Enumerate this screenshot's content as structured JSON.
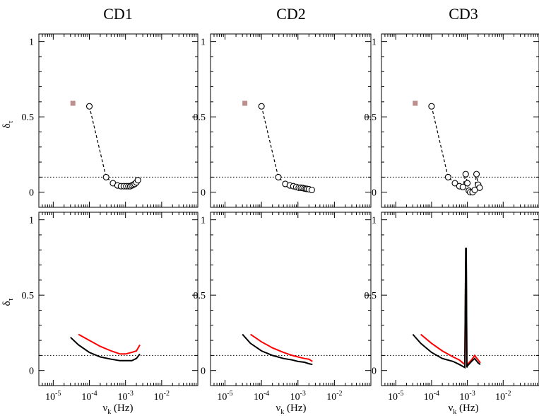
{
  "figure": {
    "titles": [
      "CD1",
      "CD2",
      "CD3"
    ],
    "ylabel_top": "δτ",
    "ylabel_bottom": "δτ",
    "xlabel": "νk (Hz)"
  },
  "chart_data": [
    {
      "type": "scatter",
      "title": "CD1",
      "row": "top",
      "xscale": "log",
      "xlim": [
        4e-06,
        0.1
      ],
      "ylim": [
        -0.1,
        1.05
      ],
      "yticks": [
        0,
        0.5,
        1
      ],
      "ytick_labels": [
        "0",
        "0.5",
        "1"
      ],
      "xticks": [
        1e-05,
        0.0001,
        0.001,
        0.01
      ],
      "xtick_labels": [
        [
          "10",
          "-5"
        ],
        [
          "10",
          "-4"
        ],
        [
          "10",
          "-3"
        ],
        [
          "10",
          "-2"
        ]
      ],
      "reference_line": 0.1,
      "square_marker": {
        "x": 3.5e-05,
        "y": 0.59,
        "color": "#bc8f8f"
      },
      "series": [
        {
          "name": "circles",
          "x": [
            0.0001,
            0.00029,
            0.00045,
            0.0006,
            0.00075,
            0.0009,
            0.00105,
            0.0012,
            0.00135,
            0.0015,
            0.00165,
            0.0018,
            0.002,
            0.0022
          ],
          "y": [
            0.57,
            0.1,
            0.06,
            0.045,
            0.04,
            0.04,
            0.04,
            0.04,
            0.04,
            0.045,
            0.05,
            0.055,
            0.065,
            0.08
          ]
        }
      ]
    },
    {
      "type": "scatter",
      "title": "CD2",
      "row": "top",
      "xscale": "log",
      "xlim": [
        4e-06,
        0.1
      ],
      "ylim": [
        -0.1,
        1.05
      ],
      "yticks": [
        0,
        0.5,
        1
      ],
      "ytick_labels": [
        "0",
        "0.5",
        "1"
      ],
      "xticks": [
        1e-05,
        0.0001,
        0.001,
        0.01
      ],
      "xtick_labels": [
        [
          "10",
          "-5"
        ],
        [
          "10",
          "-4"
        ],
        [
          "10",
          "-3"
        ],
        [
          "10",
          "-2"
        ]
      ],
      "reference_line": 0.1,
      "square_marker": {
        "x": 3.5e-05,
        "y": 0.59,
        "color": "#bc8f8f"
      },
      "series": [
        {
          "name": "circles",
          "x": [
            0.0001,
            0.00029,
            0.00045,
            0.0006,
            0.00075,
            0.0009,
            0.00105,
            0.0012,
            0.00135,
            0.0015,
            0.00165,
            0.0018,
            0.002,
            0.0024
          ],
          "y": [
            0.57,
            0.1,
            0.055,
            0.045,
            0.04,
            0.035,
            0.03,
            0.03,
            0.028,
            0.025,
            0.023,
            0.022,
            0.02,
            0.015
          ]
        }
      ]
    },
    {
      "type": "scatter",
      "title": "CD3",
      "row": "top",
      "xscale": "log",
      "xlim": [
        4e-06,
        0.1
      ],
      "ylim": [
        -0.1,
        1.05
      ],
      "yticks": [
        0,
        0.5,
        1
      ],
      "ytick_labels": [
        "0",
        "0.5",
        "1"
      ],
      "xticks": [
        1e-05,
        0.0001,
        0.001,
        0.01
      ],
      "xtick_labels": [
        [
          "10",
          "-5"
        ],
        [
          "10",
          "-4"
        ],
        [
          "10",
          "-3"
        ],
        [
          "10",
          "-2"
        ]
      ],
      "reference_line": 0.1,
      "square_marker": {
        "x": 3.5e-05,
        "y": 0.59,
        "color": "#bc8f8f"
      },
      "series": [
        {
          "name": "circles",
          "x": [
            0.0001,
            0.00029,
            0.00045,
            0.0006,
            0.00075,
            0.0009,
            0.001,
            0.0011,
            0.0012,
            0.0014,
            0.0016,
            0.0018,
            0.002,
            0.0022
          ],
          "y": [
            0.57,
            0.1,
            0.06,
            0.04,
            0.035,
            0.12,
            0.06,
            0.01,
            0.0,
            0.0,
            0.015,
            0.12,
            0.05,
            0.03
          ]
        }
      ]
    },
    {
      "type": "line",
      "title": "CD1",
      "row": "bottom",
      "xscale": "log",
      "xlim": [
        4e-06,
        0.1
      ],
      "ylim": [
        -0.1,
        1.05
      ],
      "yticks": [
        0,
        0.5,
        1
      ],
      "ytick_labels": [
        "0",
        "0.5",
        "1"
      ],
      "xticks": [
        1e-05,
        0.0001,
        0.001,
        0.01
      ],
      "xtick_labels": [
        [
          "10",
          "-5"
        ],
        [
          "10",
          "-4"
        ],
        [
          "10",
          "-3"
        ],
        [
          "10",
          "-2"
        ]
      ],
      "reference_line": 0.1,
      "series": [
        {
          "name": "black",
          "color": "#000000",
          "x": [
            3e-05,
            5e-05,
            0.0001,
            0.0002,
            0.0004,
            0.0007,
            0.001,
            0.0015,
            0.002,
            0.0025
          ],
          "y": [
            0.22,
            0.17,
            0.12,
            0.09,
            0.075,
            0.065,
            0.065,
            0.065,
            0.08,
            0.11
          ]
        },
        {
          "name": "red",
          "color": "#ff0000",
          "x": [
            5e-05,
            0.0001,
            0.0002,
            0.0004,
            0.0007,
            0.001,
            0.0015,
            0.002,
            0.0025
          ],
          "y": [
            0.24,
            0.2,
            0.16,
            0.13,
            0.11,
            0.11,
            0.12,
            0.13,
            0.17
          ]
        }
      ]
    },
    {
      "type": "line",
      "title": "CD2",
      "row": "bottom",
      "xscale": "log",
      "xlim": [
        4e-06,
        0.1
      ],
      "ylim": [
        -0.1,
        1.05
      ],
      "yticks": [
        0,
        0.5,
        1
      ],
      "ytick_labels": [
        "0",
        "0.5",
        "1"
      ],
      "xticks": [
        1e-05,
        0.0001,
        0.001,
        0.01
      ],
      "xtick_labels": [
        [
          "10",
          "-5"
        ],
        [
          "10",
          "-4"
        ],
        [
          "10",
          "-3"
        ],
        [
          "10",
          "-2"
        ]
      ],
      "reference_line": 0.1,
      "series": [
        {
          "name": "black",
          "color": "#000000",
          "x": [
            3e-05,
            5e-05,
            0.0001,
            0.0002,
            0.0004,
            0.0007,
            0.001,
            0.0015,
            0.002,
            0.0025
          ],
          "y": [
            0.24,
            0.18,
            0.13,
            0.1,
            0.08,
            0.07,
            0.06,
            0.055,
            0.045,
            0.04
          ]
        },
        {
          "name": "red",
          "color": "#ff0000",
          "x": [
            5e-05,
            0.0001,
            0.0002,
            0.0004,
            0.0007,
            0.001,
            0.0015,
            0.002,
            0.0025
          ],
          "y": [
            0.24,
            0.19,
            0.15,
            0.12,
            0.1,
            0.09,
            0.08,
            0.075,
            0.06
          ]
        }
      ]
    },
    {
      "type": "line",
      "title": "CD3",
      "row": "bottom",
      "xscale": "log",
      "xlim": [
        4e-06,
        0.1
      ],
      "ylim": [
        -0.1,
        1.05
      ],
      "yticks": [
        0,
        0.5,
        1
      ],
      "ytick_labels": [
        "0",
        "0.5",
        "1"
      ],
      "xticks": [
        1e-05,
        0.0001,
        0.001,
        0.01
      ],
      "xtick_labels": [
        [
          "10",
          "-5"
        ],
        [
          "10",
          "-4"
        ],
        [
          "10",
          "-3"
        ],
        [
          "10",
          "-2"
        ]
      ],
      "reference_line": 0.1,
      "series": [
        {
          "name": "black",
          "color": "#000000",
          "x": [
            3e-05,
            5e-05,
            0.0001,
            0.0002,
            0.0004,
            0.0006,
            0.00085,
            0.0009,
            0.00093,
            0.00097,
            0.001,
            0.0013,
            0.0016,
            0.002,
            0.0023
          ],
          "y": [
            0.24,
            0.18,
            0.12,
            0.08,
            0.06,
            0.04,
            0.02,
            0.81,
            0.81,
            0.02,
            0.03,
            0.06,
            0.08,
            0.05,
            0.04
          ]
        },
        {
          "name": "red",
          "color": "#ff0000",
          "x": [
            5e-05,
            0.0001,
            0.0002,
            0.0004,
            0.0006,
            0.00085,
            0.0009,
            0.00093,
            0.00097,
            0.001,
            0.0013,
            0.0016,
            0.002,
            0.0023
          ],
          "y": [
            0.24,
            0.18,
            0.13,
            0.09,
            0.07,
            0.04,
            0.72,
            0.72,
            0.03,
            0.04,
            0.07,
            0.1,
            0.07,
            0.05
          ]
        }
      ]
    }
  ]
}
